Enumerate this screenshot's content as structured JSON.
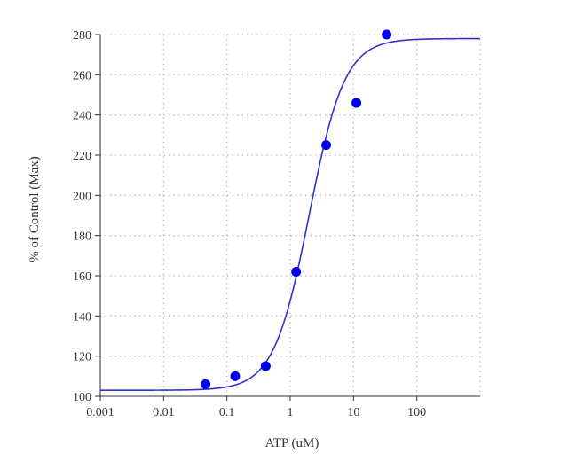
{
  "chart_data": {
    "type": "scatter",
    "title": "",
    "xlabel": "ATP (uM)",
    "ylabel": "% of Control (Max)",
    "x_scale": "log",
    "xlim": [
      0.001,
      1000
    ],
    "ylim": [
      100,
      280
    ],
    "x_ticks": [
      "0.001",
      "0.01",
      "0.1",
      "1",
      "10",
      "100"
    ],
    "y_ticks": [
      "100",
      "120",
      "140",
      "160",
      "180",
      "200",
      "220",
      "240",
      "260",
      "280"
    ],
    "grid": true,
    "grid_style": "dotted",
    "legend": "none",
    "points": [
      {
        "x": 0.046,
        "y": 106
      },
      {
        "x": 0.135,
        "y": 110
      },
      {
        "x": 0.41,
        "y": 115
      },
      {
        "x": 1.24,
        "y": 162
      },
      {
        "x": 3.7,
        "y": 225
      },
      {
        "x": 11.1,
        "y": 246
      },
      {
        "x": 33.3,
        "y": 280
      }
    ],
    "fit_curve": {
      "model": "four-parameter logistic",
      "bottom": 103,
      "top": 278,
      "ec50": 2.0,
      "hill": 1.55
    },
    "colors": {
      "points": "#0000ee",
      "curve": "#3333cc",
      "grid": "#b5b5b5",
      "axis": "#333333"
    }
  }
}
